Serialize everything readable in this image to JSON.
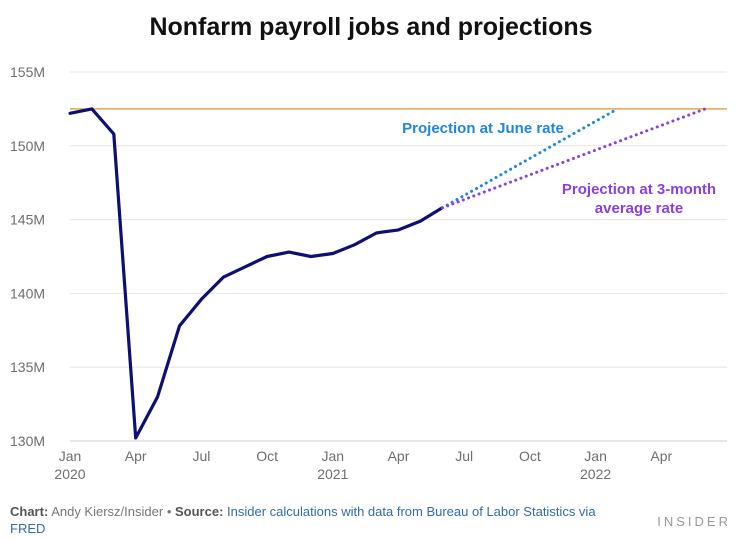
{
  "chart_data": {
    "type": "line",
    "title": "Nonfarm payroll jobs and projections",
    "ylim": [
      130,
      156
    ],
    "yticks": [
      {
        "value": 130,
        "label": "130M"
      },
      {
        "value": 135,
        "label": "135M"
      },
      {
        "value": 140,
        "label": "140M"
      },
      {
        "value": 145,
        "label": "145M"
      },
      {
        "value": 150,
        "label": "150M"
      },
      {
        "value": 155,
        "label": "155M"
      }
    ],
    "xticks": [
      {
        "date": "2020-01",
        "label": "Jan",
        "sublabel": "2020"
      },
      {
        "date": "2020-04",
        "label": "Apr",
        "sublabel": ""
      },
      {
        "date": "2020-07",
        "label": "Jul",
        "sublabel": ""
      },
      {
        "date": "2020-10",
        "label": "Oct",
        "sublabel": ""
      },
      {
        "date": "2021-01",
        "label": "Jan",
        "sublabel": "2021"
      },
      {
        "date": "2021-04",
        "label": "Apr",
        "sublabel": ""
      },
      {
        "date": "2021-07",
        "label": "Jul",
        "sublabel": ""
      },
      {
        "date": "2021-10",
        "label": "Oct",
        "sublabel": ""
      },
      {
        "date": "2022-01",
        "label": "Jan",
        "sublabel": "2022"
      },
      {
        "date": "2022-04",
        "label": "Apr",
        "sublabel": ""
      }
    ],
    "xrange": [
      "2020-01",
      "2022-07"
    ],
    "reference_line": {
      "value": 152.5,
      "color": "#e0a458"
    },
    "series": [
      {
        "color": "#0d0f73",
        "style": "solid",
        "points": [
          {
            "date": "2020-01",
            "value": 152.2
          },
          {
            "date": "2020-02",
            "value": 152.5
          },
          {
            "date": "2020-03",
            "value": 150.8
          },
          {
            "date": "2020-04",
            "value": 130.2
          },
          {
            "date": "2020-05",
            "value": 133.0
          },
          {
            "date": "2020-06",
            "value": 137.8
          },
          {
            "date": "2020-07",
            "value": 139.6
          },
          {
            "date": "2020-08",
            "value": 141.1
          },
          {
            "date": "2020-09",
            "value": 141.8
          },
          {
            "date": "2020-10",
            "value": 142.5
          },
          {
            "date": "2020-11",
            "value": 142.8
          },
          {
            "date": "2020-12",
            "value": 142.5
          },
          {
            "date": "2021-01",
            "value": 142.7
          },
          {
            "date": "2021-02",
            "value": 143.3
          },
          {
            "date": "2021-03",
            "value": 144.1
          },
          {
            "date": "2021-04",
            "value": 144.3
          },
          {
            "date": "2021-05",
            "value": 144.9
          },
          {
            "date": "2021-06",
            "value": 145.8
          }
        ]
      },
      {
        "name": "Projection at June rate",
        "color": "#1f86e0",
        "style": "dotted",
        "points": [
          {
            "date": "2021-06",
            "value": 145.8
          },
          {
            "date": "2022-02",
            "value": 152.5
          }
        ]
      },
      {
        "name": "Projection at 3-month average rate",
        "color": "#8a3fe0",
        "style": "dotted",
        "points": [
          {
            "date": "2021-06",
            "value": 145.8
          },
          {
            "date": "2022-06",
            "value": 152.5
          }
        ]
      }
    ],
    "annotations": [
      {
        "lines": [
          "Projection at June rate"
        ],
        "color": "#1f86e0"
      },
      {
        "lines": [
          "Projection at 3-month",
          "average rate"
        ],
        "color": "#8a3fe0"
      }
    ]
  },
  "footer": {
    "chart_label": "Chart:",
    "chart_author": "Andy Kiersz/Insider",
    "bullet": "•",
    "source_label": "Source:",
    "source_text": "Insider calculations with data from Bureau of Labor Statistics via FRED"
  },
  "brand": "INSIDER"
}
